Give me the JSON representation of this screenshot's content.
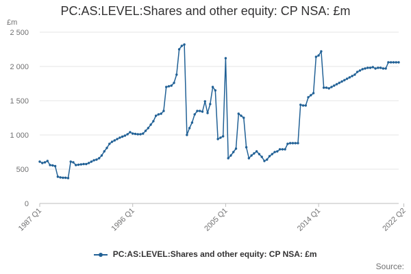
{
  "chart_data": {
    "type": "line",
    "title": "PC:AS:LEVEL:Shares and other equity: CP NSA: £m",
    "ylabel": "£m",
    "xlabel": "",
    "ylim": [
      0,
      2500
    ],
    "y_ticks": [
      0,
      500,
      1000,
      1500,
      2000,
      2500
    ],
    "y_tick_labels": [
      "0",
      "500",
      "1 000",
      "1 500",
      "2 000",
      "2 500"
    ],
    "x_tick_labels": [
      "1987 Q1",
      "1996 Q1",
      "2005 Q1",
      "2014 Q1",
      "2022 Q2"
    ],
    "x_tick_index": [
      0,
      36,
      72,
      108,
      141
    ],
    "legend": "PC:AS:LEVEL:Shares and other equity: CP NSA: £m",
    "legend_position": "bottom",
    "grid": true,
    "source_label": "Source:",
    "color": "#206095",
    "series": [
      {
        "name": "PC:AS:LEVEL:Shares and other equity: CP NSA: £m",
        "values": [
          610,
          590,
          600,
          620,
          560,
          555,
          545,
          390,
          380,
          375,
          375,
          370,
          610,
          600,
          560,
          565,
          570,
          575,
          575,
          590,
          610,
          630,
          640,
          660,
          700,
          760,
          810,
          870,
          900,
          920,
          940,
          960,
          975,
          990,
          1010,
          1040,
          1020,
          1015,
          1010,
          1010,
          1020,
          1060,
          1100,
          1150,
          1200,
          1280,
          1300,
          1310,
          1350,
          1700,
          1710,
          1720,
          1760,
          1880,
          2250,
          2300,
          2320,
          1000,
          1100,
          1180,
          1300,
          1350,
          1350,
          1340,
          1490,
          1320,
          1450,
          1700,
          1650,
          940,
          960,
          980,
          2120,
          660,
          700,
          750,
          800,
          1310,
          1280,
          1250,
          820,
          660,
          700,
          730,
          760,
          720,
          680,
          620,
          640,
          690,
          720,
          750,
          760,
          790,
          790,
          790,
          870,
          880,
          880,
          880,
          880,
          1440,
          1430,
          1430,
          1550,
          1580,
          1610,
          2140,
          2160,
          2220,
          1690,
          1690,
          1680,
          1700,
          1720,
          1740,
          1760,
          1780,
          1800,
          1820,
          1840,
          1860,
          1880,
          1920,
          1940,
          1960,
          1970,
          1980,
          1980,
          1990,
          1970,
          1980,
          1980,
          1970,
          1970,
          2060,
          2060,
          2060,
          2060,
          2060
        ]
      }
    ]
  }
}
